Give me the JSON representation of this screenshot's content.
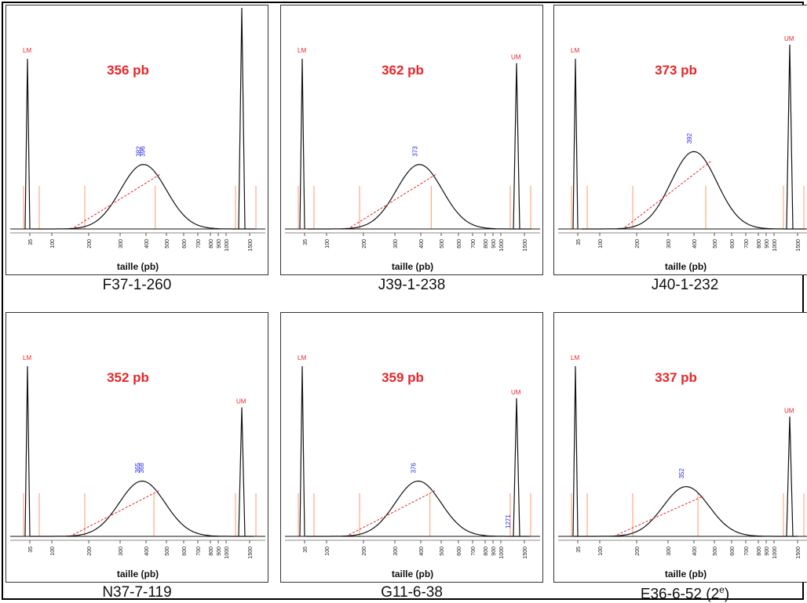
{
  "colors": {
    "peak": "#111111",
    "marker": "#ff9a6a",
    "size_text": "#e8262a",
    "peak_label": "#2a2ae6",
    "baseline": "#e8262a"
  },
  "chart_data": [
    {
      "type": "line",
      "sample": "F37-1-260",
      "size_label": "356 pb",
      "xlabel": "taille (pb)",
      "ticks": [
        "35",
        "100",
        "200",
        "300",
        "400",
        "500",
        "600",
        "700",
        "800",
        "900",
        "1000",
        "1500"
      ],
      "lower_marker": "LM",
      "upper_marker": "",
      "peak_labels": [
        "382",
        "396"
      ],
      "peak_size": 390,
      "peak_height": 0.35,
      "upper_height": 1.2
    },
    {
      "type": "line",
      "sample": "J39-1-238",
      "size_label": "362 pb",
      "xlabel": "taille (pb)",
      "ticks": [
        "35",
        "100",
        "200",
        "300",
        "400",
        "500",
        "600",
        "700",
        "800",
        "900",
        "1000",
        "1500"
      ],
      "lower_marker": "LM",
      "upper_marker": "UM",
      "peak_labels": [
        "373"
      ],
      "peak_size": 395,
      "peak_height": 0.35,
      "upper_height": 0.9
    },
    {
      "type": "line",
      "sample": "J40-1-232",
      "size_label": "373 pb",
      "xlabel": "taille (pb)",
      "ticks": [
        "35",
        "100",
        "200",
        "300",
        "400",
        "500",
        "600",
        "700",
        "800",
        "900",
        "1000",
        "1500"
      ],
      "lower_marker": "LM",
      "upper_marker": "UM",
      "peak_labels": [
        "392"
      ],
      "peak_size": 400,
      "peak_height": 0.42,
      "upper_height": 1.0
    },
    {
      "type": "line",
      "sample": "N37-7-119",
      "size_label": "352 pb",
      "xlabel": "taille (pb)",
      "ticks": [
        "35",
        "100",
        "200",
        "300",
        "400",
        "500",
        "600",
        "700",
        "800",
        "900",
        "1000",
        "1500"
      ],
      "lower_marker": "LM",
      "upper_marker": "UM",
      "peak_labels": [
        "365",
        "368"
      ],
      "peak_size": 385,
      "peak_height": 0.3,
      "upper_height": 0.7
    },
    {
      "type": "line",
      "sample": "G11-6-38",
      "size_label": "359 pb",
      "xlabel": "taille (pb)",
      "ticks": [
        "35",
        "100",
        "200",
        "300",
        "400",
        "500",
        "600",
        "700",
        "800",
        "900",
        "1000",
        "1500"
      ],
      "lower_marker": "LM",
      "upper_marker": "UM",
      "peak_labels": [
        "376",
        "1271"
      ],
      "peak_size": 390,
      "peak_height": 0.3,
      "upper_height": 0.75
    },
    {
      "type": "line",
      "sample": "E36-6-52 (2",
      "sample_sup": "e",
      "sample_suffix": ")",
      "size_label": "337 pb",
      "xlabel": "taille (pb)",
      "ticks": [
        "35",
        "100",
        "200",
        "300",
        "400",
        "500",
        "600",
        "700",
        "800",
        "900",
        "1000",
        "1500"
      ],
      "lower_marker": "LM",
      "upper_marker": "UM",
      "peak_labels": [
        "352"
      ],
      "peak_size": 370,
      "peak_height": 0.27,
      "upper_height": 0.65
    }
  ]
}
